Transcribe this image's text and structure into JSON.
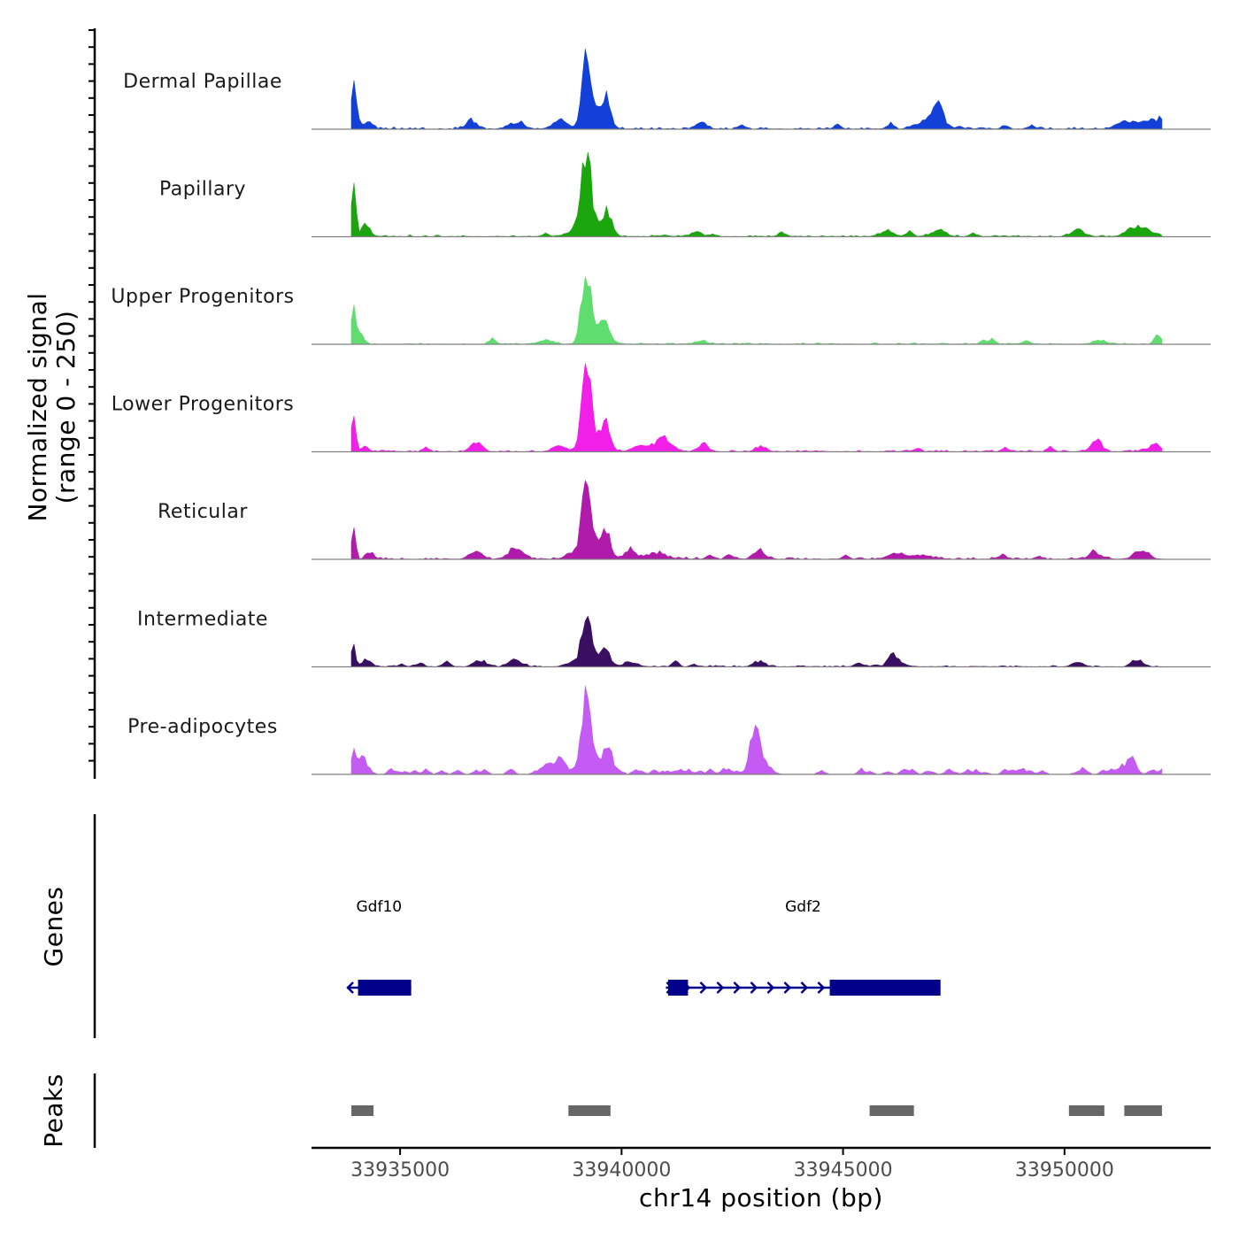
{
  "chart_data": {
    "type": "area",
    "title": "",
    "ylabel_line1": "Normalized signal",
    "ylabel_line2": "(range 0 - 250)",
    "ylim": [
      0,
      250
    ],
    "xlabel": "chr14 position (bp)",
    "xlim": [
      33933000,
      33953300
    ],
    "x_ticks": [
      33935000,
      33940000,
      33945000,
      33950000
    ],
    "x_tick_labels": [
      "33935000",
      "33940000",
      "33945000",
      "33950000"
    ],
    "data_range": [
      33933900,
      33952200
    ],
    "bin_bp": 60,
    "tracks": [
      {
        "name": "Dermal Papillae",
        "color": "#1240D8",
        "peaks": [
          [
            33933950,
            140,
            40
          ],
          [
            33934000,
            40,
            80
          ],
          [
            33934350,
            12,
            80
          ],
          [
            33936600,
            25,
            110
          ],
          [
            33937700,
            18,
            110
          ],
          [
            33938600,
            25,
            150
          ],
          [
            33939200,
            220,
            95
          ],
          [
            33939650,
            70,
            90
          ],
          [
            33939450,
            45,
            200
          ],
          [
            33941800,
            18,
            110
          ],
          [
            33947150,
            60,
            120
          ],
          [
            33946900,
            25,
            220
          ],
          [
            33951400,
            22,
            200
          ],
          [
            33951900,
            20,
            180
          ],
          [
            33952150,
            25,
            60
          ]
        ],
        "spikes": 12,
        "noise": 6,
        "seed": 11
      },
      {
        "name": "Papillary",
        "color": "#1BA60E",
        "peaks": [
          [
            33933950,
            150,
            50
          ],
          [
            33934250,
            35,
            80
          ],
          [
            33939200,
            235,
            100
          ],
          [
            33939700,
            55,
            90
          ],
          [
            33939450,
            45,
            200
          ],
          [
            33938900,
            18,
            150
          ],
          [
            33941700,
            15,
            120
          ],
          [
            33946000,
            15,
            150
          ],
          [
            33947150,
            20,
            150
          ],
          [
            33950300,
            18,
            150
          ],
          [
            33951800,
            22,
            200
          ],
          [
            33951500,
            15,
            150
          ]
        ],
        "spikes": 8,
        "noise": 5,
        "seed": 23
      },
      {
        "name": "Upper Progenitors",
        "color": "#5FDD6E",
        "peaks": [
          [
            33933950,
            120,
            45
          ],
          [
            33934100,
            30,
            80
          ],
          [
            33939200,
            210,
            100
          ],
          [
            33939650,
            50,
            90
          ],
          [
            33939450,
            35,
            200
          ],
          [
            33938300,
            12,
            150
          ],
          [
            33941800,
            10,
            120
          ],
          [
            33950800,
            10,
            150
          ],
          [
            33952150,
            12,
            80
          ]
        ],
        "spikes": 6,
        "noise": 4,
        "seed": 37
      },
      {
        "name": "Lower Progenitors",
        "color": "#F11FE7",
        "peaks": [
          [
            33933950,
            115,
            45
          ],
          [
            33934200,
            15,
            80
          ],
          [
            33936700,
            22,
            120
          ],
          [
            33939200,
            240,
            100
          ],
          [
            33939650,
            65,
            90
          ],
          [
            33939450,
            40,
            200
          ],
          [
            33938600,
            15,
            150
          ],
          [
            33940400,
            18,
            150
          ],
          [
            33940900,
            28,
            150
          ],
          [
            33941000,
            18,
            200
          ],
          [
            33941800,
            15,
            120
          ],
          [
            33943150,
            15,
            120
          ],
          [
            33950700,
            28,
            110
          ],
          [
            33952000,
            15,
            150
          ]
        ],
        "spikes": 10,
        "noise": 5,
        "seed": 41
      },
      {
        "name": "Reticular",
        "color": "#B11BAC",
        "peaks": [
          [
            33933950,
            110,
            45
          ],
          [
            33934300,
            15,
            80
          ],
          [
            33936700,
            22,
            140
          ],
          [
            33937600,
            30,
            140
          ],
          [
            33939200,
            210,
            100
          ],
          [
            33939650,
            65,
            90
          ],
          [
            33939450,
            40,
            200
          ],
          [
            33938900,
            20,
            150
          ],
          [
            33940200,
            18,
            150
          ],
          [
            33940800,
            18,
            200
          ],
          [
            33943100,
            28,
            120
          ],
          [
            33946200,
            15,
            200
          ],
          [
            33946800,
            12,
            200
          ],
          [
            33950700,
            15,
            150
          ],
          [
            33951700,
            22,
            150
          ]
        ],
        "spikes": 12,
        "noise": 6,
        "seed": 53
      },
      {
        "name": "Intermediate",
        "color": "#3A0E60",
        "peaks": [
          [
            33933950,
            75,
            45
          ],
          [
            33934300,
            10,
            80
          ],
          [
            33936800,
            18,
            140
          ],
          [
            33937600,
            20,
            140
          ],
          [
            33939200,
            140,
            100
          ],
          [
            33939650,
            35,
            90
          ],
          [
            33939450,
            25,
            200
          ],
          [
            33938900,
            15,
            150
          ],
          [
            33940200,
            12,
            150
          ],
          [
            33943100,
            15,
            120
          ],
          [
            33946100,
            35,
            90
          ],
          [
            33946250,
            15,
            150
          ],
          [
            33950300,
            15,
            120
          ],
          [
            33951700,
            15,
            120
          ]
        ],
        "spikes": 12,
        "noise": 4,
        "seed": 67
      },
      {
        "name": "Pre-adipocytes",
        "color": "#C45CF3",
        "peaks": [
          [
            33933950,
            90,
            45
          ],
          [
            33934150,
            50,
            90
          ],
          [
            33938600,
            45,
            140
          ],
          [
            33938300,
            25,
            120
          ],
          [
            33939200,
            225,
            100
          ],
          [
            33939700,
            65,
            90
          ],
          [
            33939450,
            40,
            200
          ],
          [
            33943000,
            100,
            100
          ],
          [
            33943200,
            40,
            150
          ],
          [
            33951550,
            40,
            90
          ],
          [
            33951300,
            15,
            100
          ]
        ],
        "spikes": 70,
        "noise": 0,
        "seed": 79
      }
    ],
    "genes_title": "Genes",
    "genes": [
      {
        "name": "Gdf10",
        "start": 33933800,
        "end": 33935250,
        "strand": "-",
        "exons": [
          [
            33934050,
            33935250
          ]
        ]
      },
      {
        "name": "Gdf2",
        "start": 33941000,
        "end": 33947200,
        "strand": "+",
        "exons": [
          [
            33941050,
            33941500
          ],
          [
            33944700,
            33947200
          ]
        ]
      }
    ],
    "peaks_title": "Peaks",
    "peak_regions": [
      [
        33933900,
        33934400
      ],
      [
        33938800,
        33939750
      ],
      [
        33945600,
        33946600
      ],
      [
        33950100,
        33950900
      ],
      [
        33951350,
        33952200
      ]
    ],
    "axis_color": "#000000",
    "baseline_color": "#808080",
    "gene_color": "#00008B",
    "peak_color": "#666666"
  }
}
